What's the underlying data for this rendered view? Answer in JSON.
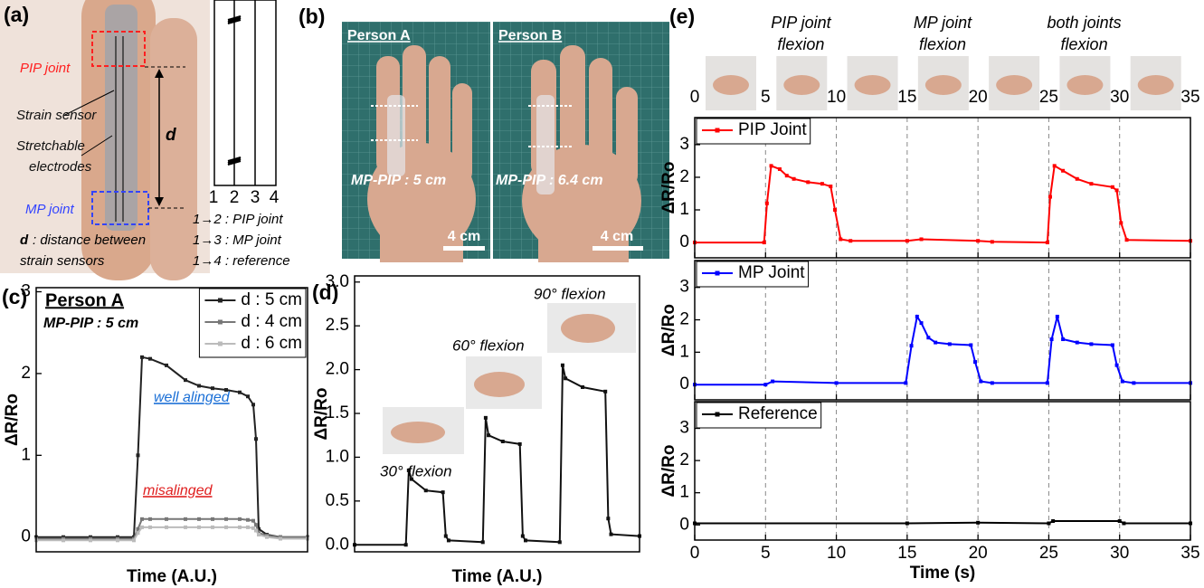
{
  "panels": {
    "a": {
      "label": "(a)",
      "pip_joint": "PIP joint",
      "strain_sensor": "Strain sensor",
      "electrodes": [
        "Stretchable",
        "electrodes"
      ],
      "mp_joint": "MP joint",
      "d": "d",
      "d_note": [
        "d",
        ": distance between",
        "strain sensors"
      ],
      "channels": [
        1,
        2,
        3,
        4
      ],
      "mapping": [
        "1→2 : PIP joint",
        "1→3 : MP joint",
        "1→4 : reference"
      ]
    },
    "b": {
      "label": "(b)",
      "persons": [
        {
          "name": "Person A",
          "spacing": "MP-PIP : 5 cm",
          "scale": "4 cm"
        },
        {
          "name": "Person B",
          "spacing": "MP-PIP : 6.4 cm",
          "scale": "4 cm"
        }
      ]
    },
    "e": {
      "label": "(e)",
      "photo_times": [
        0,
        5,
        10,
        15,
        20,
        25,
        30,
        35
      ],
      "phases": [
        [
          "PIP joint",
          "flexion"
        ],
        [
          "MP joint",
          "flexion"
        ],
        [
          "both joints",
          "flexion"
        ]
      ]
    }
  },
  "chart_data": [
    {
      "type": "line",
      "panel_label": "(c)",
      "xlabel": "Time (A.U.)",
      "ylabel": "ΔR/Ro",
      "annotations": [
        "Person A",
        "MP-PIP : 5 cm",
        "well alinged",
        "misalinged"
      ],
      "xlim": [
        0,
        100
      ],
      "ylim": [
        -0.18,
        3.05
      ],
      "yticks": [
        0,
        1,
        2,
        3
      ],
      "legend": "upper right",
      "x": [
        0,
        10,
        20,
        30,
        36,
        37.5,
        39,
        42,
        48,
        55,
        60,
        65,
        70,
        75,
        78,
        80,
        81,
        82,
        85,
        90,
        100
      ],
      "series": [
        {
          "name": "d : 5 cm",
          "color": "#222222",
          "values": [
            0,
            0,
            0,
            0,
            0,
            1.0,
            2.2,
            2.18,
            2.1,
            1.92,
            1.85,
            1.82,
            1.8,
            1.77,
            1.72,
            1.62,
            1.2,
            0.1,
            0.03,
            0,
            0
          ]
        },
        {
          "name": "d : 4 cm",
          "color": "#777777",
          "values": [
            -0.02,
            -0.02,
            -0.02,
            -0.02,
            -0.02,
            0.1,
            0.22,
            0.22,
            0.22,
            0.22,
            0.22,
            0.22,
            0.22,
            0.22,
            0.21,
            0.2,
            0.15,
            0.05,
            0.02,
            0,
            0
          ]
        },
        {
          "name": "d : 6 cm",
          "color": "#bbbbbb",
          "values": [
            -0.04,
            -0.04,
            -0.04,
            -0.04,
            -0.04,
            0.05,
            0.12,
            0.12,
            0.12,
            0.12,
            0.12,
            0.12,
            0.12,
            0.12,
            0.12,
            0.11,
            0.08,
            0.03,
            0,
            -0.02,
            -0.02
          ]
        }
      ]
    },
    {
      "type": "line",
      "panel_label": "(d)",
      "xlabel": "Time (A.U.)",
      "ylabel": "ΔR/Ro",
      "annotations": [
        "30° flexion",
        "60° flexion",
        "90° flexion"
      ],
      "xlim": [
        0,
        100
      ],
      "ylim": [
        -0.08,
        3.07
      ],
      "yticks": [
        {
          "value": 0,
          "label": "0.0"
        },
        0.5,
        {
          "value": 1,
          "label": "1.0"
        },
        1.5,
        {
          "value": 2,
          "label": "2.0"
        },
        2.5,
        {
          "value": 3,
          "label": "3.0"
        }
      ],
      "x": [
        0,
        18,
        19,
        20,
        25,
        31,
        32,
        33,
        45,
        46,
        47,
        52,
        58,
        59,
        60,
        72,
        73,
        74,
        80,
        88,
        89,
        90,
        100
      ],
      "series": [
        {
          "name": null,
          "color": "#111111",
          "values": [
            0,
            0,
            0.85,
            0.75,
            0.62,
            0.6,
            0.1,
            0.05,
            0.03,
            1.45,
            1.25,
            1.18,
            1.15,
            0.1,
            0.05,
            0.03,
            2.05,
            1.9,
            1.8,
            1.75,
            0.3,
            0.12,
            0.1
          ]
        }
      ]
    },
    {
      "type": "line",
      "ylabel": "ΔR/Ro",
      "xlim": [
        0,
        35
      ],
      "ylim": [
        -0.47,
        3.83
      ],
      "yticks": [
        0,
        1,
        2,
        3
      ],
      "xticks": [
        0,
        5,
        10,
        15,
        20,
        25,
        30,
        35
      ],
      "xtick_labels": false,
      "grid": true,
      "legend": "upper left",
      "x": [
        0,
        4.9,
        5.1,
        5.4,
        6,
        6.5,
        7,
        8,
        9,
        9.6,
        9.9,
        10.3,
        11,
        15,
        16,
        20,
        21,
        24.9,
        25.1,
        25.4,
        26,
        27,
        28,
        29.5,
        29.8,
        30.1,
        30.5,
        35
      ],
      "series": [
        {
          "name": "PIP Joint",
          "color": "#ff0000",
          "values": [
            0,
            0,
            1.2,
            2.35,
            2.25,
            2.05,
            1.95,
            1.85,
            1.8,
            1.72,
            1.0,
            0.1,
            0.05,
            0.05,
            0.1,
            0.05,
            0.02,
            0,
            1.4,
            2.35,
            2.2,
            1.95,
            1.8,
            1.7,
            1.6,
            0.6,
            0.08,
            0.05
          ]
        }
      ]
    },
    {
      "type": "line",
      "ylabel": "ΔR/Ro",
      "xlim": [
        0,
        35
      ],
      "ylim": [
        -0.47,
        3.83
      ],
      "yticks": [
        0,
        1,
        2,
        3
      ],
      "xticks": [
        0,
        5,
        10,
        15,
        20,
        25,
        30,
        35
      ],
      "xtick_labels": false,
      "grid": true,
      "legend": "upper left",
      "x": [
        0,
        5,
        5.5,
        10,
        14.9,
        15.3,
        15.7,
        16,
        16.5,
        17,
        18,
        19.5,
        19.8,
        20.2,
        21,
        24.9,
        25.2,
        25.6,
        26,
        27,
        28,
        29.5,
        29.8,
        30.2,
        31,
        35
      ],
      "series": [
        {
          "name": "MP Joint",
          "color": "#0000ff",
          "values": [
            0,
            0,
            0.1,
            0.05,
            0.05,
            1.2,
            2.1,
            1.9,
            1.45,
            1.3,
            1.25,
            1.22,
            0.7,
            0.1,
            0.05,
            0.05,
            1.4,
            2.1,
            1.4,
            1.3,
            1.25,
            1.22,
            0.6,
            0.1,
            0.05,
            0.05
          ]
        }
      ]
    },
    {
      "type": "line",
      "ylabel": "ΔR/Ro",
      "xlabel": "Time (s)",
      "xlim": [
        0,
        35
      ],
      "ylim": [
        -0.47,
        3.83
      ],
      "yticks": [
        0,
        1,
        2,
        3
      ],
      "xticks": [
        0,
        5,
        10,
        15,
        20,
        25,
        30,
        35
      ],
      "xtick_labels": true,
      "grid": true,
      "legend": "upper left",
      "x": [
        0,
        15,
        20,
        25,
        25.3,
        30,
        30.3,
        35
      ],
      "series": [
        {
          "name": "Reference",
          "color": "#000000",
          "values": [
            0.05,
            0.05,
            0.07,
            0.05,
            0.12,
            0.12,
            0.05,
            0.05
          ]
        }
      ]
    }
  ]
}
